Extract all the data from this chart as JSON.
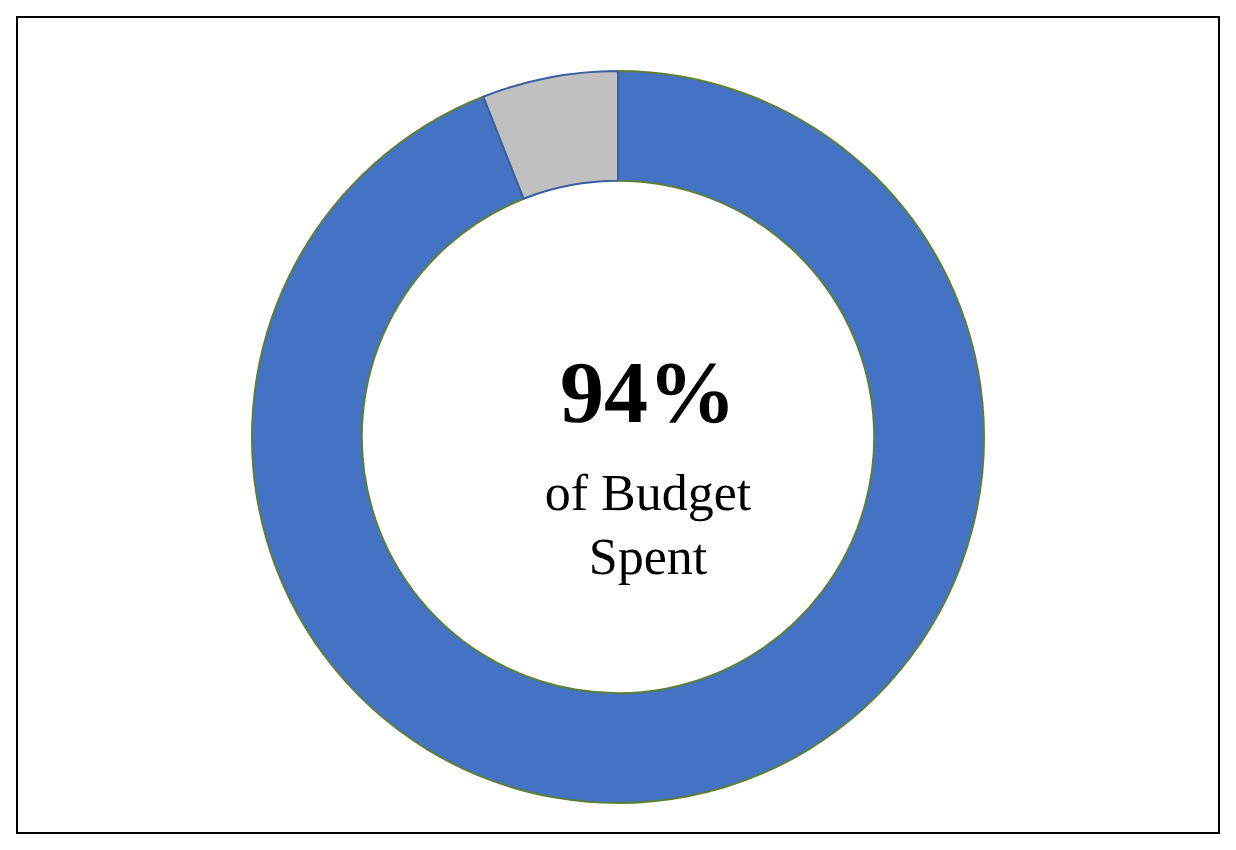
{
  "chart_data": {
    "type": "donut",
    "categories": [
      null,
      null
    ],
    "values": [
      94,
      6
    ],
    "colors": [
      "#4472c4",
      "#c0c0c0"
    ],
    "annotations": [
      "94%",
      "of Budget Spent"
    ],
    "legend": false
  }
}
